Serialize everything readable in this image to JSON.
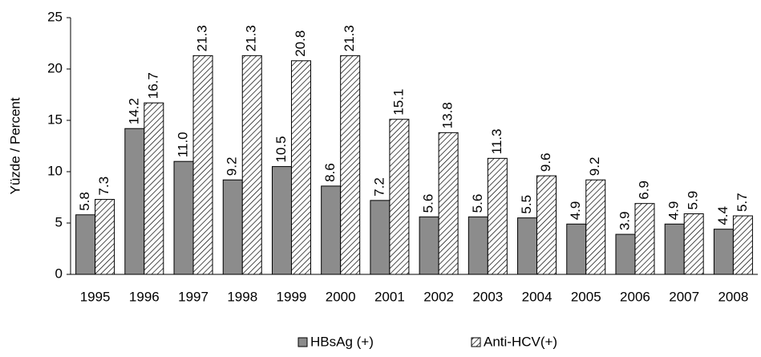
{
  "chart_data": {
    "type": "bar",
    "ylabel": "Yüzde / Percent",
    "categories": [
      "1995",
      "1996",
      "1997",
      "1998",
      "1999",
      "2000",
      "2001",
      "2002",
      "2003",
      "2004",
      "2005",
      "2006",
      "2007",
      "2008"
    ],
    "series": [
      {
        "name": "HBsAg (+)",
        "color": "#8c8c8c",
        "hatch": false,
        "values": [
          5.8,
          14.2,
          11.0,
          9.2,
          10.5,
          8.6,
          7.2,
          5.6,
          5.6,
          5.5,
          4.9,
          3.9,
          4.9,
          4.4
        ],
        "value_labels": [
          "5.8",
          "14.2",
          "11.0",
          "9.2",
          "10.5",
          "8.6",
          "7.2",
          "5.6",
          "5.6",
          "5.5",
          "4.9",
          "3.9",
          "4.9",
          "4.4"
        ]
      },
      {
        "name": "Anti-HCV(+)",
        "color": "#000000",
        "hatch": true,
        "values": [
          7.3,
          16.7,
          21.3,
          21.3,
          20.8,
          21.3,
          15.1,
          13.8,
          11.3,
          9.6,
          9.2,
          6.9,
          5.9,
          5.7
        ],
        "value_labels": [
          "7.3",
          "16.7",
          "21.3",
          "21.3",
          "20.8",
          "21.3",
          "15.1",
          "13.8",
          "11.3",
          "9.6",
          "9.2",
          "6.9",
          "5.9",
          "5.7"
        ]
      }
    ],
    "ylim": [
      0,
      25
    ],
    "yticks": [
      0,
      5,
      10,
      15,
      20,
      25
    ],
    "grid": false,
    "legend": "bottom"
  }
}
